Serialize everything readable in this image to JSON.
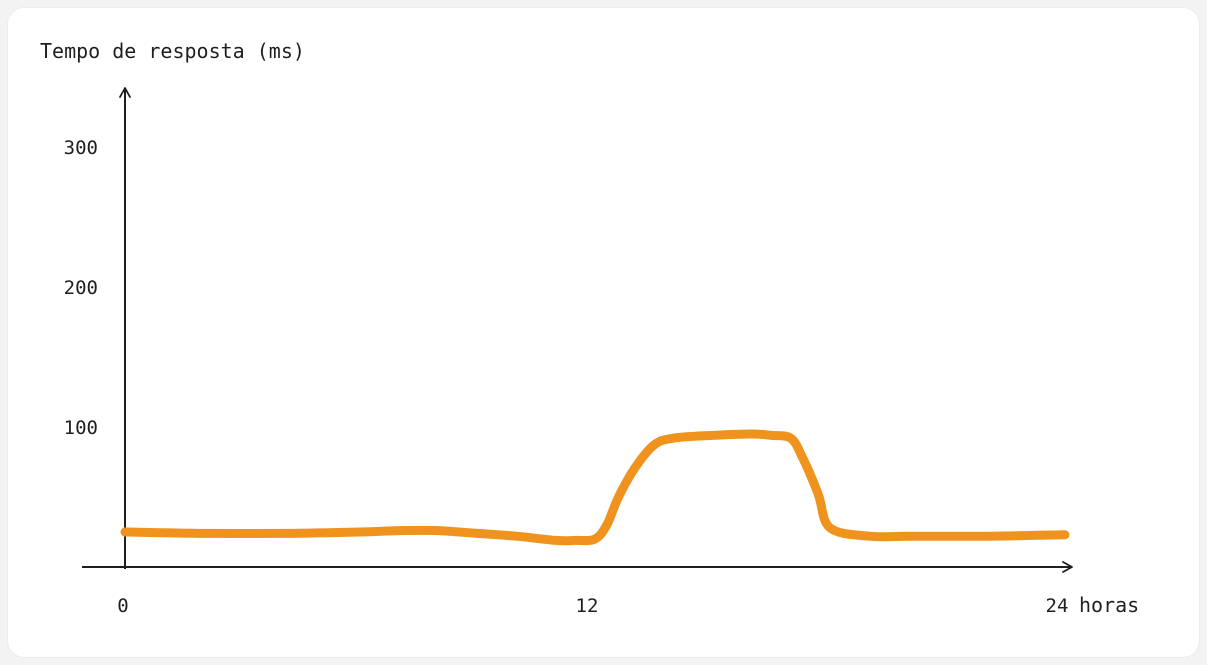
{
  "chart_data": {
    "type": "line",
    "title": "",
    "ylabel": "Tempo de resposta (ms)",
    "xlabel": "horas",
    "xlim": [
      0,
      24
    ],
    "ylim": [
      0,
      350
    ],
    "x_ticks": [
      {
        "value": 0,
        "label": "0"
      },
      {
        "value": 12,
        "label": "12"
      },
      {
        "value": 24,
        "label": "24"
      }
    ],
    "y_ticks": [
      {
        "value": 100,
        "label": "100"
      },
      {
        "value": 200,
        "label": "200"
      },
      {
        "value": 300,
        "label": "300"
      }
    ],
    "grid": false,
    "series": [
      {
        "color": "#f0931e",
        "x": [
          0,
          2,
          4,
          6,
          7,
          8,
          9,
          10,
          11,
          11.5,
          12,
          12.3,
          12.6,
          13,
          13.5,
          14,
          15,
          16,
          16.5,
          17,
          17.3,
          17.7,
          18,
          19,
          20,
          22,
          24
        ],
        "y": [
          25,
          24,
          24,
          25,
          26,
          26,
          24,
          22,
          19,
          19,
          20,
          30,
          50,
          70,
          87,
          92,
          94,
          95,
          94,
          92,
          78,
          52,
          28,
          22,
          22,
          22,
          23
        ]
      }
    ]
  }
}
